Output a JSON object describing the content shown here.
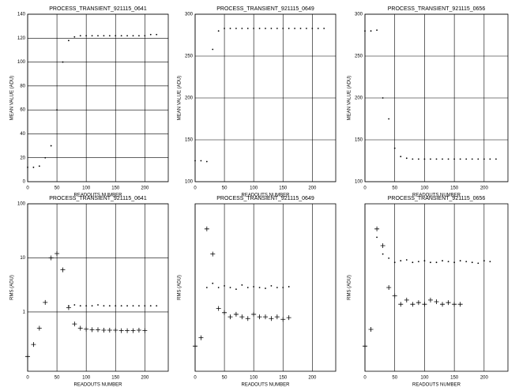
{
  "chart_data": [
    {
      "type": "scatter",
      "title": "PROCESS_TRANSIENT_921115_0641",
      "xlabel": "READOUTS NUMBER",
      "ylabel": "MEAN VALUE (ADU)",
      "xlim": [
        0,
        240
      ],
      "ylim": [
        0,
        140
      ],
      "xticks": [
        0,
        50,
        100,
        150,
        200
      ],
      "yticks": [
        0,
        20,
        40,
        60,
        80,
        100,
        120,
        140
      ],
      "grid": true,
      "log_y": false,
      "x": [
        0,
        10,
        20,
        30,
        40,
        50,
        60,
        70,
        80,
        90,
        100,
        110,
        120,
        130,
        140,
        150,
        160,
        170,
        180,
        190,
        200,
        210,
        220
      ],
      "series": [
        {
          "marker": "dot",
          "color": "#000000",
          "values": [
            12,
            12,
            13,
            20,
            30,
            60,
            100,
            118,
            121,
            122,
            122,
            122,
            122,
            122,
            122,
            122,
            122,
            122,
            122,
            122,
            122,
            123,
            123
          ]
        }
      ]
    },
    {
      "type": "scatter",
      "title": "PROCESS_TRANSIENT_921115_0649",
      "xlabel": "READOUTS NUMBER",
      "ylabel": "MEAN VALUE (ADU)",
      "xlim": [
        0,
        240
      ],
      "ylim": [
        100,
        300
      ],
      "xticks": [
        0,
        50,
        100,
        150,
        200
      ],
      "yticks": [
        100,
        150,
        200,
        250,
        300
      ],
      "grid": true,
      "log_y": false,
      "x": [
        0,
        10,
        20,
        30,
        40,
        50,
        60,
        70,
        80,
        90,
        100,
        110,
        120,
        130,
        140,
        150,
        160,
        170,
        180,
        190,
        200,
        210,
        220
      ],
      "series": [
        {
          "marker": "dot",
          "color": "#000000",
          "values": [
            125,
            125,
            124,
            258,
            280,
            283,
            283,
            283,
            283,
            283,
            283,
            283,
            283,
            283,
            283,
            283,
            283,
            283,
            283,
            283,
            283,
            283,
            283
          ]
        }
      ]
    },
    {
      "type": "scatter",
      "title": "PROCESS_TRANSIENT_921115_0656",
      "xlabel": "READOUTS NUMBER",
      "ylabel": "MEAN VALUE (ADU)",
      "xlim": [
        0,
        240
      ],
      "ylim": [
        100,
        300
      ],
      "xticks": [
        0,
        50,
        100,
        150,
        200
      ],
      "yticks": [
        100,
        150,
        200,
        250,
        300
      ],
      "grid": true,
      "log_y": false,
      "x": [
        0,
        10,
        20,
        30,
        40,
        50,
        60,
        70,
        80,
        90,
        100,
        110,
        120,
        130,
        140,
        150,
        160,
        170,
        180,
        190,
        200,
        210,
        220
      ],
      "series": [
        {
          "marker": "dot",
          "color": "#000000",
          "values": [
            280,
            280,
            281,
            200,
            175,
            140,
            130,
            128,
            127,
            127,
            127,
            127,
            127,
            127,
            127,
            127,
            127,
            127,
            127,
            127,
            127,
            127,
            127
          ]
        }
      ]
    },
    {
      "type": "scatter",
      "title": "PROCESS_TRANSIENT_921115_0641",
      "xlabel": "READOUTS NUMBER",
      "ylabel": "RMS (ADU)",
      "xlim": [
        0,
        240
      ],
      "ylim": [
        0.08,
        100
      ],
      "xticks": [
        0,
        50,
        100,
        150,
        200
      ],
      "yticks": [
        1,
        10,
        100
      ],
      "grid": true,
      "log_y": true,
      "x": [
        0,
        10,
        20,
        30,
        40,
        50,
        60,
        70,
        80,
        90,
        100,
        110,
        120,
        130,
        140,
        150,
        160,
        170,
        180,
        190,
        200,
        210,
        220
      ],
      "series": [
        {
          "marker": "plus",
          "color": "#000000",
          "values": [
            0.15,
            0.25,
            0.5,
            1.5,
            10,
            12,
            6,
            1.2,
            0.6,
            0.5,
            0.48,
            0.47,
            0.47,
            0.46,
            0.46,
            0.46,
            0.45,
            0.45,
            0.45,
            0.46,
            0.45,
            null,
            null
          ]
        },
        {
          "marker": "dot",
          "color": "#000000",
          "values": [
            null,
            null,
            null,
            null,
            null,
            null,
            null,
            1.3,
            1.35,
            1.3,
            1.3,
            1.3,
            1.35,
            1.3,
            1.3,
            1.3,
            1.3,
            1.3,
            1.3,
            1.3,
            1.3,
            1.3,
            1.3
          ]
        }
      ]
    },
    {
      "type": "scatter",
      "title": "PROCESS_TRANSIENT_921115_0649",
      "xlabel": "READOUTS NUMBER",
      "ylabel": "RMS (ADU)",
      "xlim": [
        0,
        240
      ],
      "ylim": [
        0,
        20
      ],
      "xticks": [
        0,
        50,
        100,
        150,
        200
      ],
      "grid": true,
      "log_y": false,
      "x": [
        0,
        10,
        20,
        30,
        40,
        50,
        60,
        70,
        80,
        90,
        100,
        110,
        120,
        130,
        140,
        150,
        160,
        170,
        180,
        190,
        200,
        210,
        220
      ],
      "series": [
        {
          "marker": "plus",
          "color": "#000000",
          "values": [
            3,
            4,
            17,
            14,
            7.5,
            7,
            6.5,
            6.8,
            6.5,
            6.3,
            6.8,
            6.5,
            6.5,
            6.3,
            6.5,
            6.2,
            6.4,
            null,
            null,
            null,
            null,
            null,
            null
          ]
        },
        {
          "marker": "dot",
          "color": "#000000",
          "values": [
            null,
            null,
            10,
            10.5,
            10,
            10.2,
            10,
            9.8,
            10.3,
            10,
            10.1,
            10,
            9.9,
            10.2,
            10,
            10,
            10.1,
            null,
            null,
            null,
            null,
            null,
            null
          ]
        }
      ]
    },
    {
      "type": "scatter",
      "title": "PROCESS_TRANSIENT_921115_0656",
      "xlabel": "READOUTS NUMBER",
      "ylabel": "RMS (ADU)",
      "xlim": [
        0,
        240
      ],
      "ylim": [
        0,
        20
      ],
      "xticks": [
        0,
        50,
        100,
        150,
        200
      ],
      "grid": true,
      "log_y": false,
      "x": [
        0,
        10,
        20,
        30,
        40,
        50,
        60,
        70,
        80,
        90,
        100,
        110,
        120,
        130,
        140,
        150,
        160,
        170,
        180,
        190,
        200,
        210,
        220
      ],
      "series": [
        {
          "marker": "plus",
          "color": "#000000",
          "values": [
            3,
            5,
            17,
            15,
            10,
            9,
            8,
            8.5,
            8,
            8.2,
            8,
            8.5,
            8.3,
            8,
            8.2,
            8,
            8,
            null,
            null,
            null,
            null,
            null,
            null
          ]
        },
        {
          "marker": "dot",
          "color": "#000000",
          "values": [
            null,
            null,
            16,
            14,
            13.5,
            13,
            13.2,
            13.3,
            13,
            13.1,
            13.2,
            13,
            13,
            13.2,
            13.1,
            13,
            13.2,
            13.1,
            13,
            12.9,
            13.2,
            13.1,
            null
          ]
        }
      ]
    }
  ]
}
